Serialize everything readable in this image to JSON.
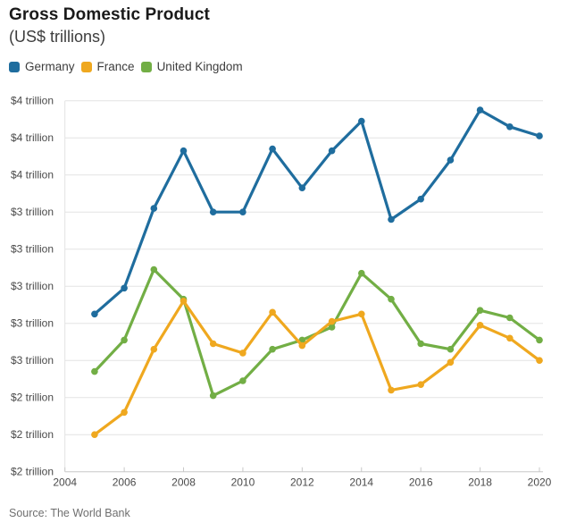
{
  "header": {
    "title": "Gross Domestic Product",
    "subtitle": "(US$ trillions)"
  },
  "legend": [
    {
      "label": "Germany",
      "color": "#1f6d9e"
    },
    {
      "label": "France",
      "color": "#efa81f"
    },
    {
      "label": "United Kingdom",
      "color": "#72ae45"
    }
  ],
  "source": "Source: The World Bank",
  "colors": {
    "gridline": "#e3e3e3",
    "axis_line": "#c8c8c8",
    "tick": "#c8c8c8",
    "axis_text": "#4a4a4a"
  },
  "chart_data": {
    "type": "line",
    "title": "Gross Domestic Product",
    "subtitle": "(US$ trillions)",
    "x": [
      2005,
      2006,
      2007,
      2008,
      2009,
      2010,
      2011,
      2012,
      2013,
      2014,
      2015,
      2016,
      2017,
      2018,
      2019,
      2020
    ],
    "series": [
      {
        "name": "Germany",
        "color": "#1f6d9e",
        "values": [
          2.85,
          2.99,
          3.42,
          3.73,
          3.4,
          3.4,
          3.74,
          3.53,
          3.73,
          3.89,
          3.36,
          3.47,
          3.68,
          3.95,
          3.86,
          3.81
        ]
      },
      {
        "name": "France",
        "color": "#efa81f",
        "values": [
          2.2,
          2.32,
          2.66,
          2.92,
          2.69,
          2.64,
          2.86,
          2.68,
          2.81,
          2.85,
          2.44,
          2.47,
          2.59,
          2.79,
          2.72,
          2.6
        ]
      },
      {
        "name": "United Kingdom",
        "color": "#72ae45",
        "values": [
          2.54,
          2.71,
          3.09,
          2.93,
          2.41,
          2.49,
          2.66,
          2.71,
          2.78,
          3.07,
          2.93,
          2.69,
          2.66,
          2.87,
          2.83,
          2.71
        ]
      }
    ],
    "xlabel": "",
    "ylabel": "",
    "x_axis": {
      "range": [
        2004,
        2020
      ],
      "tick_labels": [
        "2004",
        "2006",
        "2008",
        "2010",
        "2012",
        "2014",
        "2016",
        "2018",
        "2020"
      ]
    },
    "y_axis": {
      "range": [
        2.0,
        4.0
      ],
      "tick_step": 0.2,
      "tick_labels_top_to_bottom": [
        "$4 trillion",
        "$4 trillion",
        "$4 trillion",
        "$3 trillion",
        "$3 trillion",
        "$3 trillion",
        "$3 trillion",
        "$3 trillion",
        "$2 trillion",
        "$2 trillion",
        "$2 trillion"
      ]
    },
    "grid": true,
    "legend_position": "top-left",
    "source": "Source: The World Bank"
  }
}
